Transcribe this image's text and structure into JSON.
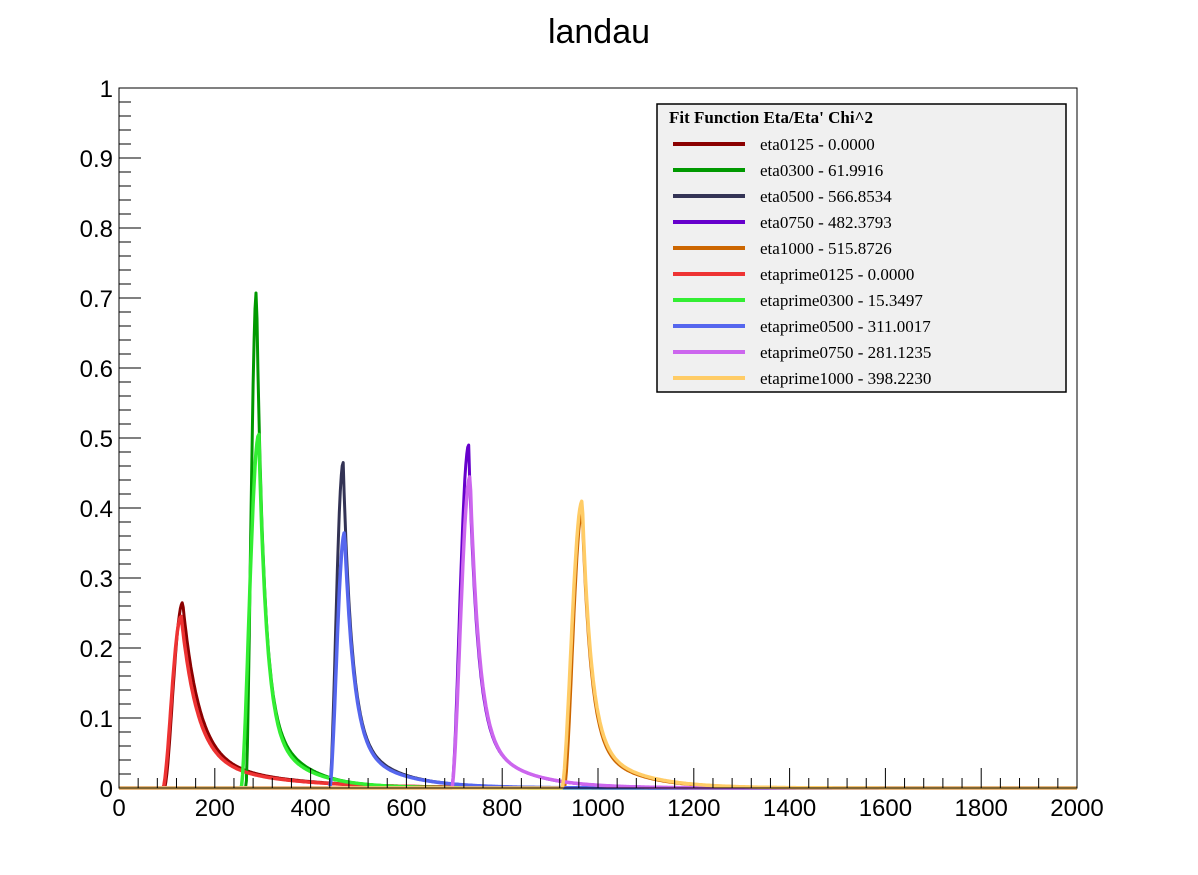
{
  "chart_data": {
    "type": "line",
    "title": "landau",
    "xlabel": "",
    "ylabel": "",
    "xlim": [
      0,
      2000
    ],
    "ylim": [
      0,
      1
    ],
    "x_ticks": [
      "0",
      "200",
      "400",
      "600",
      "800",
      "1000",
      "1200",
      "1400",
      "1600",
      "1800",
      "2000"
    ],
    "y_ticks": [
      "0",
      "0.1",
      "0.2",
      "0.3",
      "0.4",
      "0.5",
      "0.6",
      "0.7",
      "0.8",
      "0.9",
      "1"
    ],
    "grid": false,
    "legend": {
      "placement": "top-right",
      "header": "Fit Function Eta/Eta' Chi^2"
    },
    "series": [
      {
        "name": "eta0125 - 0.0000",
        "color": "#8b0000",
        "start": 95,
        "peak_x": 133,
        "peak_y": 0.265,
        "decay": 45
      },
      {
        "name": "eta0300 - 61.9916",
        "color": "#009900",
        "start": 265,
        "peak_x": 287,
        "peak_y": 0.71,
        "decay": 20
      },
      {
        "name": "eta0500 - 566.8534",
        "color": "#333355",
        "start": 440,
        "peak_x": 468,
        "peak_y": 0.465,
        "decay": 24
      },
      {
        "name": "eta0750 - 482.3793",
        "color": "#6600cc",
        "start": 695,
        "peak_x": 730,
        "peak_y": 0.49,
        "decay": 24
      },
      {
        "name": "eta1000 - 515.8726",
        "color": "#cc6600",
        "start": 930,
        "peak_x": 967,
        "peak_y": 0.395,
        "decay": 24
      },
      {
        "name": "etaprime0125 - 0.0000",
        "color": "#ee3333",
        "start": 92,
        "peak_x": 130,
        "peak_y": 0.245,
        "decay": 45
      },
      {
        "name": "etaprime0300 - 15.3497",
        "color": "#33ee33",
        "start": 255,
        "peak_x": 292,
        "peak_y": 0.505,
        "decay": 22
      },
      {
        "name": "etaprime0500 - 311.0017",
        "color": "#5566ee",
        "start": 440,
        "peak_x": 471,
        "peak_y": 0.365,
        "decay": 26
      },
      {
        "name": "etaprime0750 - 281.1235",
        "color": "#cc66ee",
        "start": 695,
        "peak_x": 733,
        "peak_y": 0.445,
        "decay": 25
      },
      {
        "name": "etaprime1000 - 398.2230",
        "color": "#ffcc66",
        "start": 925,
        "peak_x": 967,
        "peak_y": 0.41,
        "decay": 25
      }
    ]
  }
}
